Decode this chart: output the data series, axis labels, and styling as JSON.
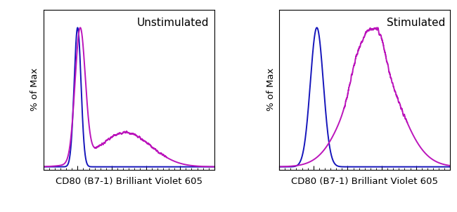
{
  "title_left": "Unstimulated",
  "title_right": "Stimulated",
  "xlabel": "CD80 (B7-1) Brilliant Violet 605",
  "ylabel": "% of Max",
  "blue_color": "#1515BB",
  "magenta_color": "#BB15BB",
  "background_color": "#ffffff",
  "fig_width": 6.5,
  "fig_height": 3.02,
  "label_fontsize": 9.5,
  "title_fontsize": 11,
  "line_width": 1.4
}
